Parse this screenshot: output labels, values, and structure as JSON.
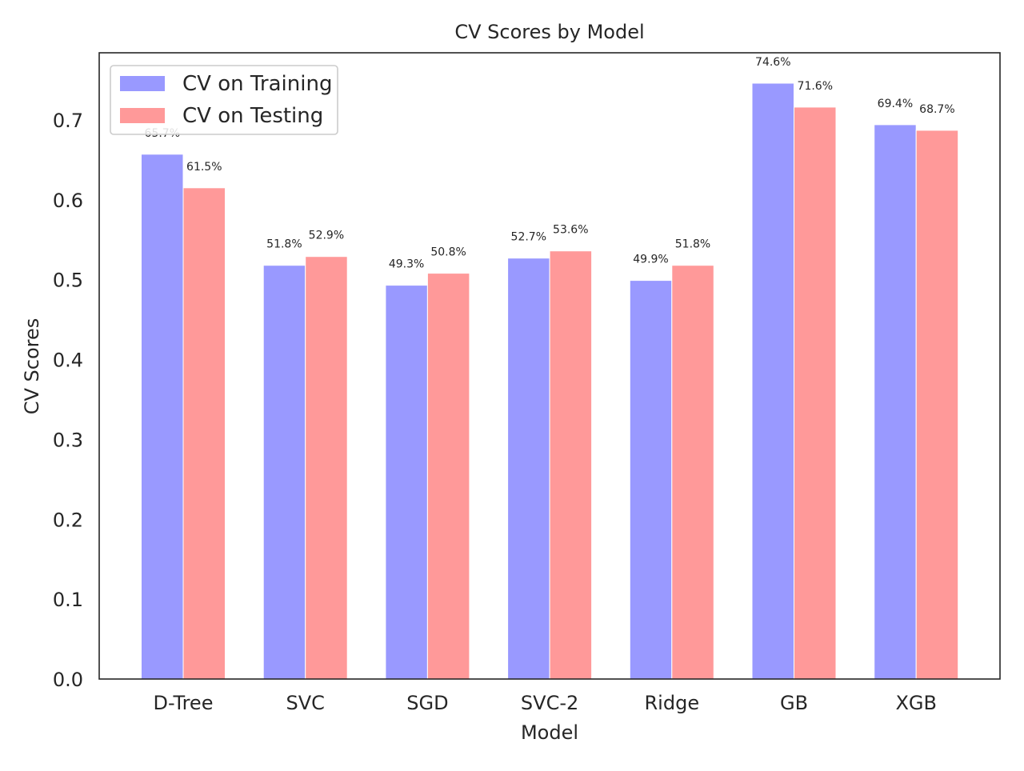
{
  "chart_data": {
    "type": "bar",
    "title": "CV Scores by Model",
    "xlabel": "Model",
    "ylabel": "CV Scores",
    "categories": [
      "D-Tree",
      "SVC",
      "SGD",
      "SVC-2",
      "Ridge",
      "GB",
      "XGB"
    ],
    "series": [
      {
        "name": "CV on Training",
        "color": "#9999ff",
        "values": [
          0.657,
          0.518,
          0.493,
          0.527,
          0.499,
          0.746,
          0.694
        ],
        "labels": [
          "65.7%",
          "51.8%",
          "49.3%",
          "52.7%",
          "49.9%",
          "74.6%",
          "69.4%"
        ]
      },
      {
        "name": "CV on Testing",
        "color": "#ff9999",
        "values": [
          0.615,
          0.529,
          0.508,
          0.536,
          0.518,
          0.716,
          0.687
        ],
        "labels": [
          "61.5%",
          "52.9%",
          "50.8%",
          "53.6%",
          "51.8%",
          "71.6%",
          "68.7%"
        ]
      }
    ],
    "ylim": [
      0,
      0.784
    ],
    "yticks": [
      "0.0",
      "0.1",
      "0.2",
      "0.3",
      "0.4",
      "0.5",
      "0.6",
      "0.7"
    ],
    "grid": false,
    "legend_position": "top-left"
  }
}
